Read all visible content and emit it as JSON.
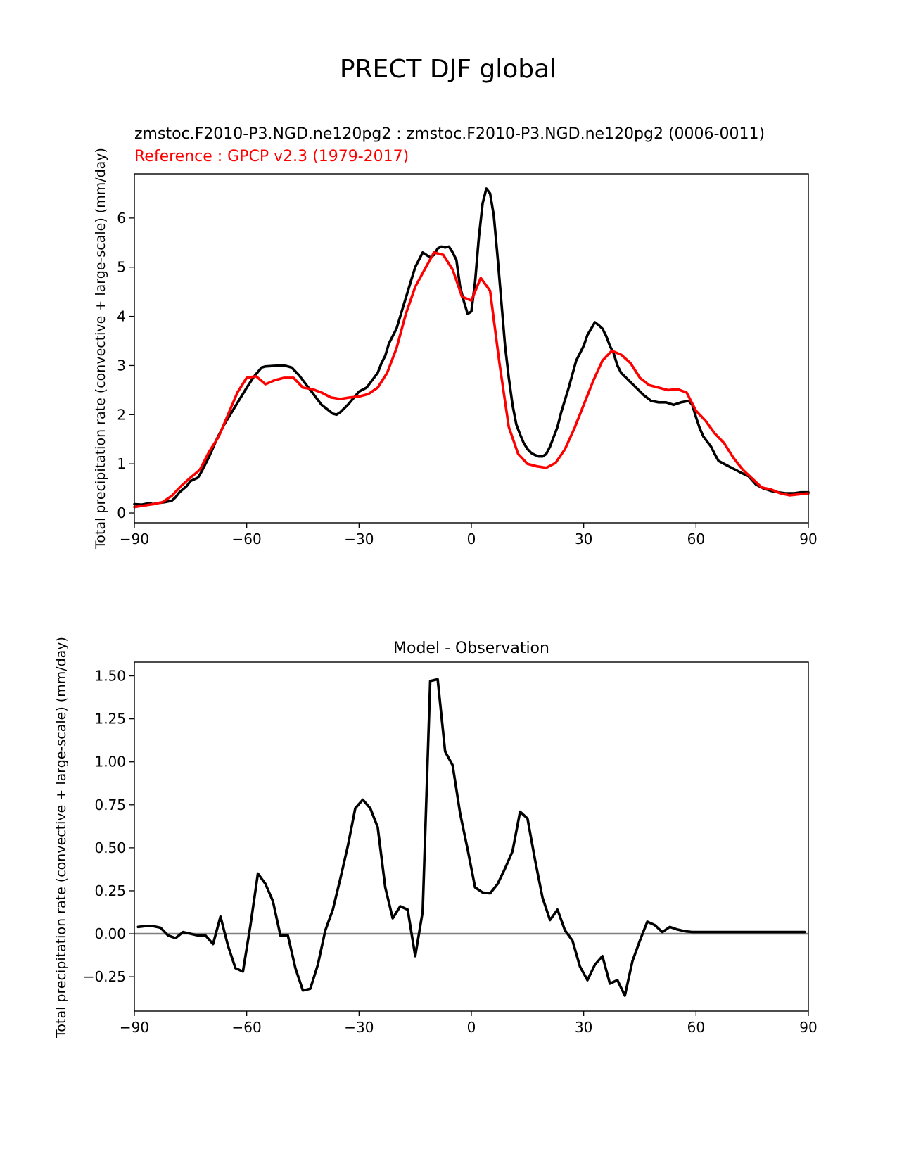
{
  "figure": {
    "title": "PRECT DJF global"
  },
  "chart_data": [
    {
      "type": "line",
      "panel": "top",
      "title_model": "zmstoc.F2010-P3.NGD.ne120pg2 : zmstoc.F2010-P3.NGD.ne120pg2 (0006-0011)",
      "title_reference": "Reference : GPCP v2.3 (1979-2017)",
      "xlabel": "",
      "ylabel": "Total precipitation rate (convective + large-scale) (mm/day)",
      "xlim": [
        -90,
        90
      ],
      "ylim": [
        -0.2,
        6.9
      ],
      "xticks": [
        -90,
        -60,
        -30,
        0,
        30,
        60,
        90
      ],
      "xtick_labels": [
        "−90",
        "−60",
        "−30",
        "0",
        "30",
        "60",
        "90"
      ],
      "yticks": [
        0,
        1,
        2,
        3,
        4,
        5,
        6
      ],
      "ytick_labels": [
        "0",
        "1",
        "2",
        "3",
        "4",
        "5",
        "6"
      ],
      "colors": {
        "model": "#000000",
        "reference": "#ff0000"
      },
      "series": [
        {
          "name": "model",
          "x": [
            -90,
            -88,
            -86,
            -85,
            -84,
            -82,
            -80,
            -79,
            -78,
            -76,
            -75,
            -73,
            -72,
            -70,
            -68,
            -66,
            -64,
            -62,
            -60,
            -58,
            -56,
            -55,
            -53,
            -51,
            -50,
            -49,
            -48,
            -46,
            -44,
            -42,
            -40,
            -38,
            -37,
            -36,
            -35,
            -33,
            -31,
            -30,
            -28,
            -26,
            -25,
            -24,
            -23,
            -22,
            -20,
            -18,
            -17,
            -16,
            -15,
            -14,
            -13,
            -12,
            -11,
            -10,
            -9,
            -8,
            -7,
            -6,
            -5,
            -4,
            -3,
            -2,
            -1,
            0,
            1,
            2,
            3,
            4,
            5,
            6,
            7,
            8,
            9,
            10,
            11,
            12,
            13,
            14,
            15,
            16,
            17,
            18,
            19,
            20,
            21,
            22,
            23,
            24,
            26,
            28,
            30,
            31,
            32,
            33,
            34,
            35,
            36,
            37,
            38,
            39,
            40,
            42,
            44,
            46,
            48,
            50,
            52,
            54,
            56,
            58,
            59,
            60,
            61,
            62,
            63,
            64,
            65,
            66,
            68,
            70,
            72,
            74,
            76,
            78,
            80,
            82,
            84,
            86,
            88,
            90
          ],
          "y": [
            0.18,
            0.17,
            0.2,
            0.18,
            0.2,
            0.22,
            0.25,
            0.32,
            0.42,
            0.55,
            0.65,
            0.72,
            0.85,
            1.15,
            1.5,
            1.8,
            2.05,
            2.3,
            2.55,
            2.78,
            2.96,
            2.98,
            2.99,
            3.0,
            3.0,
            2.98,
            2.96,
            2.8,
            2.6,
            2.4,
            2.2,
            2.08,
            2.02,
            2.0,
            2.05,
            2.2,
            2.38,
            2.47,
            2.55,
            2.75,
            2.85,
            3.05,
            3.2,
            3.45,
            3.75,
            4.25,
            4.5,
            4.75,
            5.0,
            5.15,
            5.3,
            5.25,
            5.2,
            5.25,
            5.38,
            5.42,
            5.4,
            5.42,
            5.3,
            5.15,
            4.6,
            4.3,
            4.05,
            4.1,
            4.7,
            5.6,
            6.3,
            6.6,
            6.5,
            6.05,
            5.2,
            4.3,
            3.4,
            2.75,
            2.2,
            1.8,
            1.6,
            1.42,
            1.3,
            1.22,
            1.18,
            1.15,
            1.15,
            1.2,
            1.35,
            1.55,
            1.75,
            2.05,
            2.55,
            3.1,
            3.4,
            3.62,
            3.75,
            3.88,
            3.82,
            3.75,
            3.6,
            3.4,
            3.25,
            3.0,
            2.85,
            2.7,
            2.55,
            2.4,
            2.28,
            2.25,
            2.25,
            2.2,
            2.25,
            2.28,
            2.2,
            1.95,
            1.72,
            1.55,
            1.45,
            1.35,
            1.2,
            1.06,
            0.98,
            0.9,
            0.82,
            0.75,
            0.58,
            0.5,
            0.45,
            0.42,
            0.4,
            0.4,
            0.42,
            0.42
          ]
        },
        {
          "name": "reference",
          "x": [
            -90,
            -87.5,
            -85,
            -82.5,
            -80,
            -77.5,
            -75,
            -72.5,
            -70,
            -67.5,
            -65,
            -62.5,
            -60,
            -57.5,
            -55,
            -52.5,
            -50,
            -47.5,
            -45,
            -42.5,
            -40,
            -37.5,
            -35,
            -32.5,
            -30,
            -27.5,
            -25,
            -22.5,
            -20,
            -17.5,
            -15,
            -12.5,
            -10,
            -7.5,
            -5,
            -2.5,
            0,
            2.5,
            5,
            7.5,
            10,
            12.5,
            15,
            17.5,
            20,
            22.5,
            25,
            27.5,
            30,
            32.5,
            35,
            37.5,
            40,
            42.5,
            45,
            47.5,
            50,
            52.5,
            55,
            57.5,
            60,
            62.5,
            65,
            67.5,
            70,
            72.5,
            75,
            77.5,
            80,
            82.5,
            85,
            87.5,
            90
          ],
          "y": [
            0.12,
            0.15,
            0.18,
            0.22,
            0.35,
            0.55,
            0.72,
            0.88,
            1.25,
            1.55,
            2.0,
            2.45,
            2.75,
            2.78,
            2.62,
            2.7,
            2.75,
            2.75,
            2.55,
            2.52,
            2.45,
            2.35,
            2.32,
            2.35,
            2.37,
            2.42,
            2.55,
            2.85,
            3.35,
            4.05,
            4.6,
            4.95,
            5.3,
            5.25,
            4.95,
            4.4,
            4.32,
            4.78,
            4.52,
            3.05,
            1.75,
            1.2,
            1.0,
            0.95,
            0.92,
            1.02,
            1.3,
            1.72,
            2.2,
            2.68,
            3.1,
            3.3,
            3.22,
            3.05,
            2.75,
            2.6,
            2.55,
            2.5,
            2.52,
            2.45,
            2.08,
            1.88,
            1.62,
            1.42,
            1.12,
            0.88,
            0.7,
            0.52,
            0.48,
            0.4,
            0.36,
            0.38,
            0.4
          ]
        }
      ]
    },
    {
      "type": "line",
      "panel": "bottom",
      "title": "Model - Observation",
      "xlabel": "",
      "ylabel": "Total precipitation rate (convective + large-scale) (mm/day)",
      "xlim": [
        -90,
        90
      ],
      "ylim": [
        -0.45,
        1.58
      ],
      "xticks": [
        -90,
        -60,
        -30,
        0,
        30,
        60,
        90
      ],
      "xtick_labels": [
        "−90",
        "−60",
        "−30",
        "0",
        "30",
        "60",
        "90"
      ],
      "yticks": [
        -0.25,
        0.0,
        0.25,
        0.5,
        0.75,
        1.0,
        1.25,
        1.5
      ],
      "ytick_labels": [
        "−0.25",
        "0.00",
        "0.25",
        "0.50",
        "0.75",
        "1.00",
        "1.25",
        "1.50"
      ],
      "zero_line": {
        "value": 0,
        "color": "#808080"
      },
      "colors": {
        "diff": "#000000"
      },
      "series": [
        {
          "name": "diff",
          "x": [
            -89,
            -87,
            -85,
            -83,
            -81,
            -79,
            -77,
            -75,
            -73,
            -71,
            -69,
            -67,
            -65,
            -63,
            -61,
            -59,
            -57,
            -55,
            -53,
            -51,
            -49,
            -47,
            -45,
            -43,
            -41,
            -39,
            -37,
            -35,
            -33,
            -31,
            -29,
            -27,
            -25,
            -23,
            -21,
            -19,
            -17,
            -15,
            -13,
            -11,
            -9,
            -7,
            -5,
            -3,
            -1,
            1,
            3,
            5,
            7,
            9,
            11,
            13,
            15,
            17,
            19,
            21,
            23,
            25,
            27,
            29,
            31,
            33,
            35,
            37,
            39,
            41,
            43,
            45,
            47,
            49,
            51,
            53,
            55,
            57,
            59,
            61,
            63,
            65,
            67,
            69,
            71,
            73,
            75,
            77,
            79,
            81,
            83,
            85,
            87,
            89
          ],
          "y": [
            0.04,
            0.045,
            0.045,
            0.035,
            -0.01,
            -0.025,
            0.01,
            0.0,
            -0.01,
            -0.01,
            -0.06,
            0.1,
            -0.07,
            -0.2,
            -0.22,
            0.05,
            0.35,
            0.29,
            0.19,
            -0.01,
            -0.01,
            -0.2,
            -0.33,
            -0.32,
            -0.18,
            0.02,
            0.14,
            0.32,
            0.51,
            0.73,
            0.78,
            0.73,
            0.62,
            0.27,
            0.09,
            0.16,
            0.14,
            -0.13,
            0.13,
            1.47,
            1.48,
            1.06,
            0.98,
            0.7,
            0.49,
            0.27,
            0.24,
            0.235,
            0.29,
            0.38,
            0.48,
            0.71,
            0.67,
            0.43,
            0.21,
            0.08,
            0.14,
            0.02,
            -0.04,
            -0.19,
            -0.27,
            -0.18,
            -0.13,
            -0.29,
            -0.27,
            -0.36,
            -0.16,
            -0.04,
            0.07,
            0.05,
            0.01,
            0.04,
            0.025,
            0.015,
            0.01,
            0.01,
            0.01,
            0.01,
            0.01,
            0.01,
            0.01,
            0.01,
            0.01,
            0.01,
            0.01,
            0.01,
            0.01,
            0.01,
            0.01,
            0.01
          ]
        }
      ]
    }
  ]
}
